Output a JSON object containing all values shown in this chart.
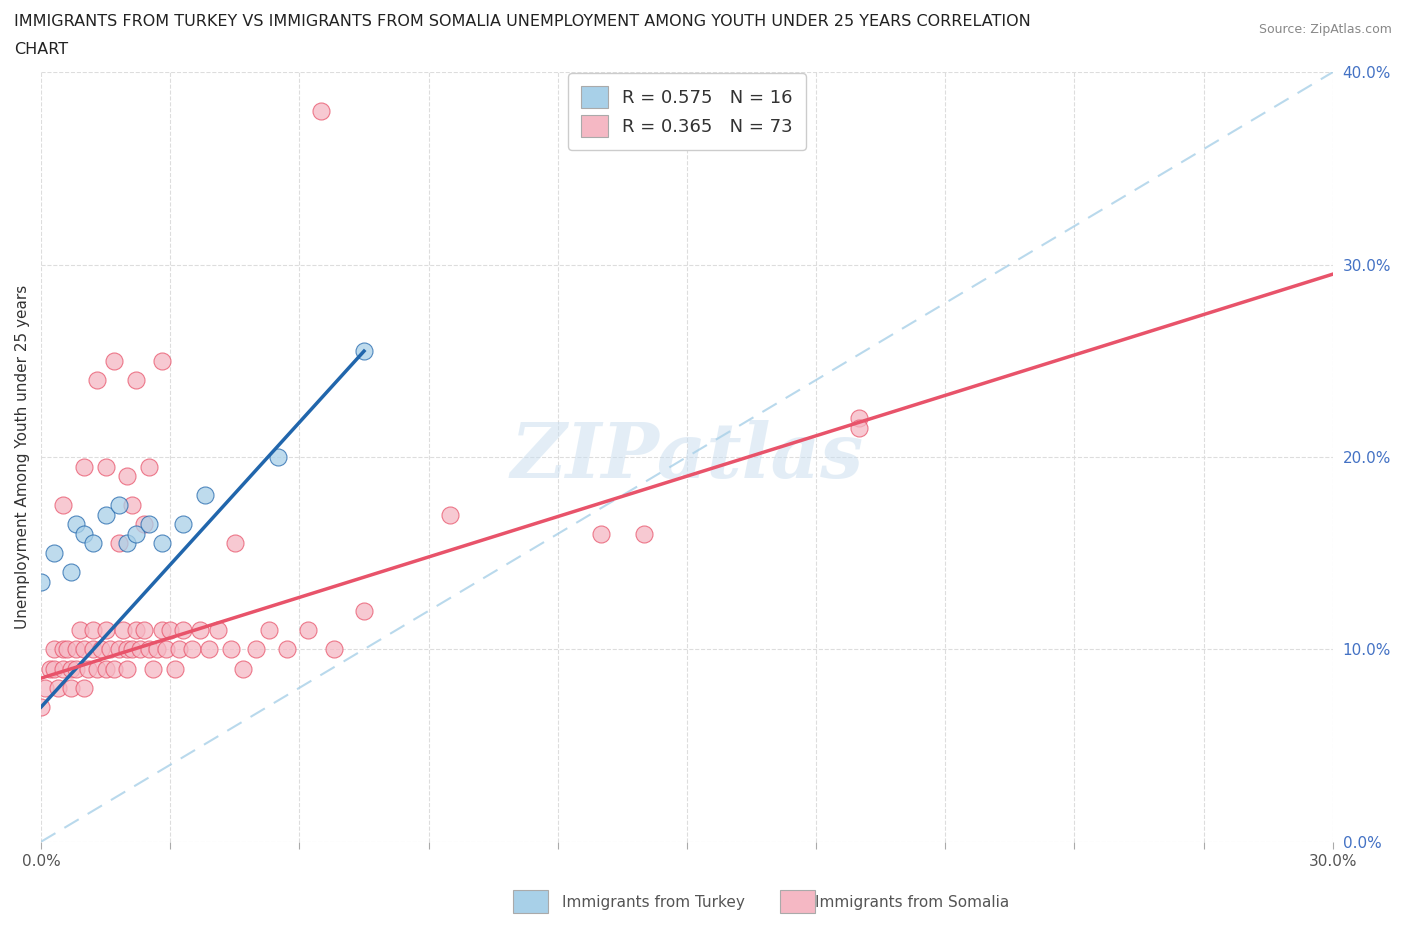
{
  "title_line1": "IMMIGRANTS FROM TURKEY VS IMMIGRANTS FROM SOMALIA UNEMPLOYMENT AMONG YOUTH UNDER 25 YEARS CORRELATION",
  "title_line2": "CHART",
  "source": "Source: ZipAtlas.com",
  "ylabel": "Unemployment Among Youth under 25 years",
  "xlabel_turkey": "Immigrants from Turkey",
  "xlabel_somalia": "Immigrants from Somalia",
  "xlim": [
    0.0,
    0.3
  ],
  "ylim": [
    0.0,
    0.4
  ],
  "xticks": [
    0.0,
    0.03,
    0.06,
    0.09,
    0.12,
    0.15,
    0.18,
    0.21,
    0.24,
    0.27,
    0.3
  ],
  "yticks": [
    0.0,
    0.1,
    0.2,
    0.3,
    0.4
  ],
  "color_turkey": "#a8d0e8",
  "color_somalia": "#f5b8c4",
  "line_color_turkey": "#2166ac",
  "line_color_somalia": "#e8536a",
  "dash_color": "#a8d0e8",
  "R_turkey": 0.575,
  "N_turkey": 16,
  "R_somalia": 0.365,
  "N_somalia": 73,
  "watermark": "ZIPatlas",
  "turkey_line_x0": 0.0,
  "turkey_line_y0": 0.07,
  "turkey_line_x1": 0.075,
  "turkey_line_y1": 0.255,
  "somalia_line_x0": 0.0,
  "somalia_line_y0": 0.085,
  "somalia_line_x1": 0.3,
  "somalia_line_y1": 0.295,
  "turkey_x": [
    0.0,
    0.003,
    0.007,
    0.008,
    0.01,
    0.012,
    0.015,
    0.018,
    0.02,
    0.022,
    0.025,
    0.028,
    0.033,
    0.038,
    0.055,
    0.075
  ],
  "turkey_y": [
    0.135,
    0.15,
    0.14,
    0.165,
    0.16,
    0.155,
    0.17,
    0.175,
    0.155,
    0.16,
    0.165,
    0.155,
    0.165,
    0.18,
    0.2,
    0.255
  ],
  "somalia_x": [
    0.0,
    0.001,
    0.002,
    0.003,
    0.003,
    0.004,
    0.005,
    0.005,
    0.006,
    0.007,
    0.007,
    0.008,
    0.008,
    0.009,
    0.01,
    0.01,
    0.011,
    0.012,
    0.012,
    0.013,
    0.014,
    0.015,
    0.015,
    0.016,
    0.017,
    0.018,
    0.019,
    0.02,
    0.02,
    0.021,
    0.022,
    0.023,
    0.024,
    0.025,
    0.026,
    0.027,
    0.028,
    0.029,
    0.03,
    0.031,
    0.032,
    0.033,
    0.035,
    0.037,
    0.039,
    0.041,
    0.044,
    0.047,
    0.05,
    0.053,
    0.057,
    0.062,
    0.068,
    0.075,
    0.045,
    0.005,
    0.01,
    0.015,
    0.02,
    0.025,
    0.013,
    0.017,
    0.022,
    0.028,
    0.018,
    0.021,
    0.024,
    0.19,
    0.19,
    0.065,
    0.13,
    0.14,
    0.095
  ],
  "somalia_y": [
    0.07,
    0.08,
    0.09,
    0.09,
    0.1,
    0.08,
    0.09,
    0.1,
    0.1,
    0.08,
    0.09,
    0.09,
    0.1,
    0.11,
    0.08,
    0.1,
    0.09,
    0.1,
    0.11,
    0.09,
    0.1,
    0.09,
    0.11,
    0.1,
    0.09,
    0.1,
    0.11,
    0.09,
    0.1,
    0.1,
    0.11,
    0.1,
    0.11,
    0.1,
    0.09,
    0.1,
    0.11,
    0.1,
    0.11,
    0.09,
    0.1,
    0.11,
    0.1,
    0.11,
    0.1,
    0.11,
    0.1,
    0.09,
    0.1,
    0.11,
    0.1,
    0.11,
    0.1,
    0.12,
    0.155,
    0.175,
    0.195,
    0.195,
    0.19,
    0.195,
    0.24,
    0.25,
    0.24,
    0.25,
    0.155,
    0.175,
    0.165,
    0.22,
    0.215,
    0.38,
    0.16,
    0.16,
    0.17
  ]
}
